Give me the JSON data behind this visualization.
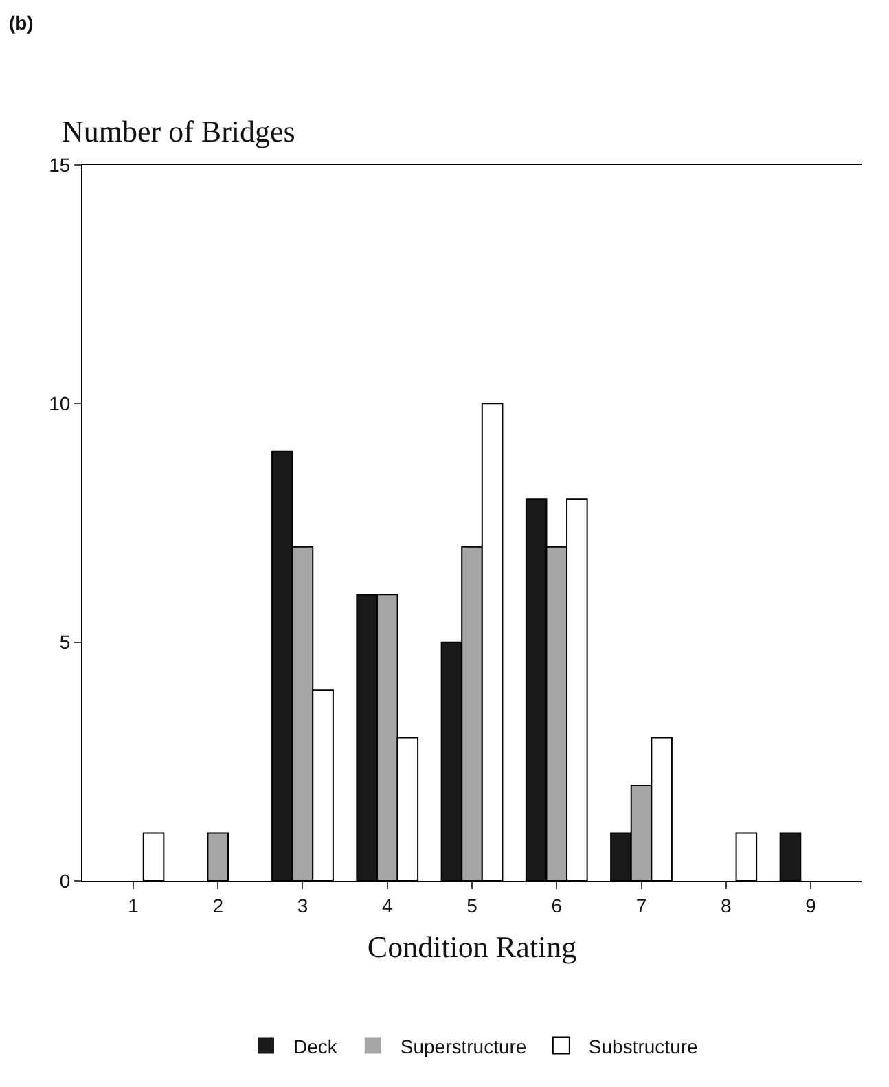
{
  "chart_data": {
    "type": "bar",
    "title": "(b)",
    "ylabel": "Number of Bridges",
    "xlabel": "Condition Rating",
    "categories": [
      "1",
      "2",
      "3",
      "4",
      "5",
      "6",
      "7",
      "8",
      "9"
    ],
    "series": [
      {
        "name": "Deck",
        "color": "#1a1a1a",
        "values": [
          0,
          0,
          9,
          6,
          5,
          8,
          1,
          0,
          1
        ]
      },
      {
        "name": "Superstructure",
        "color": "#a6a6a6",
        "values": [
          0,
          1,
          7,
          6,
          7,
          7,
          2,
          0,
          0
        ]
      },
      {
        "name": "Substructure",
        "color": "#ffffff",
        "values": [
          1,
          0,
          4,
          3,
          10,
          8,
          3,
          1,
          0
        ]
      }
    ],
    "ylim": [
      0,
      15
    ],
    "yticks": [
      0,
      5,
      10,
      15
    ],
    "legend": "bottom"
  }
}
